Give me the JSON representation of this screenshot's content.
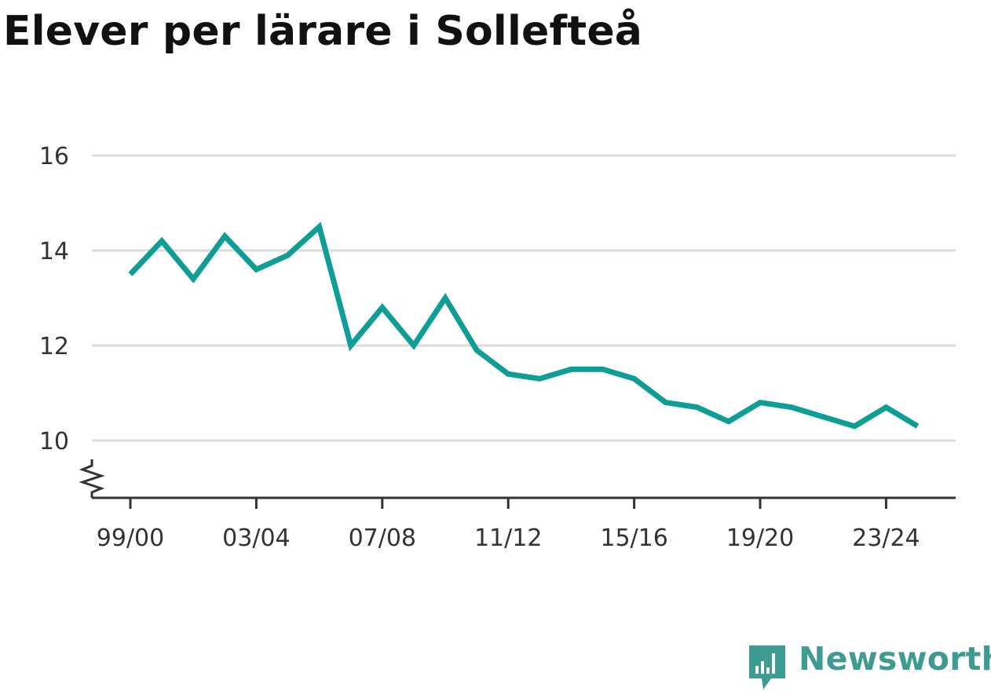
{
  "title": "Elever per lärare i Sollefteå",
  "brand": {
    "name": "Newsworthy",
    "color": "#3d9b91",
    "icon": "chat-bars-icon"
  },
  "colors": {
    "line": "#0e9e96",
    "grid": "#dcdcdc",
    "axis": "#333333"
  },
  "chart_data": {
    "type": "line",
    "title": "Elever per lärare i Sollefteå",
    "xlabel": "",
    "ylabel": "",
    "ylim": [
      8.8,
      16
    ],
    "y_ticks": [
      10,
      12,
      14,
      16
    ],
    "y_axis_break": true,
    "grid": true,
    "x": [
      "99/00",
      "00/01",
      "01/02",
      "02/03",
      "03/04",
      "04/05",
      "05/06",
      "06/07",
      "07/08",
      "08/09",
      "09/10",
      "10/11",
      "11/12",
      "12/13",
      "13/14",
      "14/15",
      "15/16",
      "16/17",
      "17/18",
      "18/19",
      "19/20",
      "20/21",
      "21/22",
      "22/23",
      "23/24",
      "24/25"
    ],
    "x_tick_labels": [
      "99/00",
      "03/04",
      "07/08",
      "11/12",
      "15/16",
      "19/20",
      "23/24"
    ],
    "series": [
      {
        "values": [
          13.5,
          14.2,
          13.4,
          14.3,
          13.6,
          13.9,
          14.5,
          12.0,
          12.8,
          12.0,
          13.0,
          11.9,
          11.4,
          11.3,
          11.5,
          11.5,
          11.3,
          10.8,
          10.7,
          10.4,
          10.8,
          10.7,
          10.5,
          10.3,
          10.7,
          10.3
        ]
      }
    ]
  }
}
